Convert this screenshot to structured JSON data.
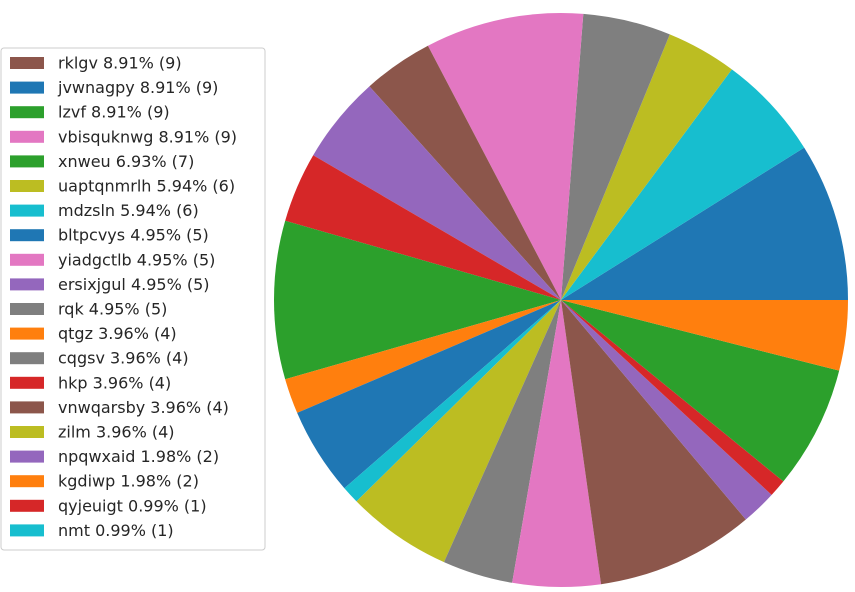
{
  "chart_data": {
    "type": "pie",
    "title": "",
    "total": 101,
    "start_angle_deg": 0,
    "direction": "counterclockwise",
    "legend_position": "left",
    "slices": [
      {
        "label": "rklgv",
        "value": 9,
        "legend": "rklgv 8.91% (9)",
        "color": "#8c564b"
      },
      {
        "label": "jvwnagpy",
        "value": 9,
        "legend": "jvwnagpy 8.91% (9)",
        "color": "#1f77b4"
      },
      {
        "label": "lzvf",
        "value": 9,
        "legend": "lzvf 8.91% (9)",
        "color": "#2ca02c"
      },
      {
        "label": "vbisquknwg",
        "value": 9,
        "legend": "vbisquknwg 8.91% (9)",
        "color": "#e377c2"
      },
      {
        "label": "xnweu",
        "value": 7,
        "legend": "xnweu 6.93% (7)",
        "color": "#2ca02c"
      },
      {
        "label": "uaptqnmrlh",
        "value": 6,
        "legend": "uaptqnmrlh 5.94% (6)",
        "color": "#bcbd22"
      },
      {
        "label": "mdzsln",
        "value": 6,
        "legend": "mdzsln 5.94% (6)",
        "color": "#17becf"
      },
      {
        "label": "bltpcvys",
        "value": 5,
        "legend": "bltpcvys 4.95% (5)",
        "color": "#1f77b4"
      },
      {
        "label": "yiadgctlb",
        "value": 5,
        "legend": "yiadgctlb 4.95% (5)",
        "color": "#e377c2"
      },
      {
        "label": "ersixjgul",
        "value": 5,
        "legend": "ersixjgul 4.95% (5)",
        "color": "#9467bd"
      },
      {
        "label": "rqk",
        "value": 5,
        "legend": "rqk 4.95% (5)",
        "color": "#7f7f7f"
      },
      {
        "label": "qtgz",
        "value": 4,
        "legend": "qtgz 3.96% (4)",
        "color": "#ff7f0e"
      },
      {
        "label": "cqgsv",
        "value": 4,
        "legend": "cqgsv 3.96% (4)",
        "color": "#7f7f7f"
      },
      {
        "label": "hkp",
        "value": 4,
        "legend": "hkp 3.96% (4)",
        "color": "#d62728"
      },
      {
        "label": "vnwqarsby",
        "value": 4,
        "legend": "vnwqarsby 3.96% (4)",
        "color": "#8c564b"
      },
      {
        "label": "zilm",
        "value": 4,
        "legend": "zilm 3.96% (4)",
        "color": "#bcbd22"
      },
      {
        "label": "npqwxaid",
        "value": 2,
        "legend": "npqwxaid 1.98% (2)",
        "color": "#9467bd"
      },
      {
        "label": "kgdiwp",
        "value": 2,
        "legend": "kgdiwp 1.98% (2)",
        "color": "#ff7f0e"
      },
      {
        "label": "qyjeuigt",
        "value": 1,
        "legend": "qyjeuigt 0.99% (1)",
        "color": "#d62728"
      },
      {
        "label": "nmt",
        "value": 1,
        "legend": "nmt 0.99% (1)",
        "color": "#17becf"
      }
    ],
    "draw_order": [
      {
        "label": "jvwnagpy",
        "value": 9,
        "color": "#1f77b4"
      },
      {
        "label": "mdzsln",
        "value": 6,
        "color": "#17becf"
      },
      {
        "label": "zilm",
        "value": 4,
        "color": "#bcbd22"
      },
      {
        "label": "rqk",
        "value": 5,
        "color": "#7f7f7f"
      },
      {
        "label": "vbisquknwg",
        "value": 9,
        "color": "#e377c2"
      },
      {
        "label": "vnwqarsby",
        "value": 4,
        "color": "#8c564b"
      },
      {
        "label": "ersixjgul",
        "value": 5,
        "color": "#9467bd"
      },
      {
        "label": "hkp",
        "value": 4,
        "color": "#d62728"
      },
      {
        "label": "lzvf",
        "value": 9,
        "color": "#2ca02c"
      },
      {
        "label": "kgdiwp",
        "value": 2,
        "color": "#ff7f0e"
      },
      {
        "label": "bltpcvys",
        "value": 5,
        "color": "#1f77b4"
      },
      {
        "label": "nmt",
        "value": 1,
        "color": "#17becf"
      },
      {
        "label": "uaptqnmrlh",
        "value": 6,
        "color": "#bcbd22"
      },
      {
        "label": "cqgsv",
        "value": 4,
        "color": "#7f7f7f"
      },
      {
        "label": "yiadgctlb",
        "value": 5,
        "color": "#e377c2"
      },
      {
        "label": "rklgv",
        "value": 9,
        "color": "#8c564b"
      },
      {
        "label": "npqwxaid",
        "value": 2,
        "color": "#9467bd"
      },
      {
        "label": "qyjeuigt",
        "value": 1,
        "color": "#d62728"
      },
      {
        "label": "xnweu",
        "value": 7,
        "color": "#2ca02c"
      },
      {
        "label": "qtgz",
        "value": 4,
        "color": "#ff7f0e"
      }
    ]
  }
}
